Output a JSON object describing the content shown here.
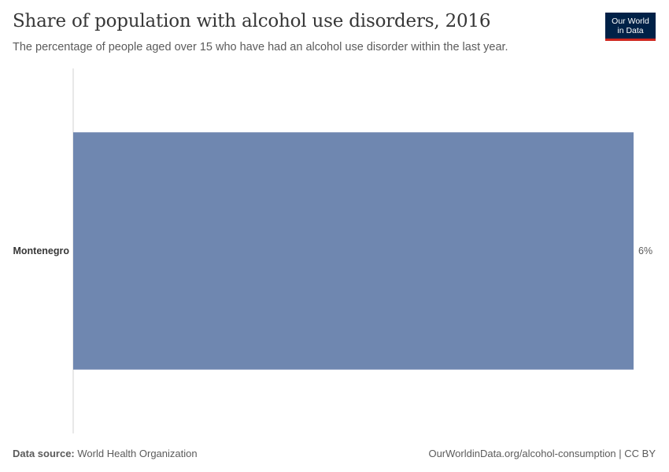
{
  "header": {
    "title": "Share of population with alcohol use disorders, 2016",
    "subtitle": "The percentage of people aged over 15 who have had an alcohol use disorder within the last year."
  },
  "logo": {
    "line1": "Our World",
    "line2": "in Data"
  },
  "footer": {
    "source_label": "Data source:",
    "source_value": "World Health Organization",
    "right_text": "OurWorldinData.org/alcohol-consumption | CC BY"
  },
  "colors": {
    "bar": "#6f87b0",
    "axis": "#d0d0d0",
    "text": "#373737",
    "label": "#5b5b5b"
  },
  "chart_data": {
    "type": "bar",
    "orientation": "horizontal",
    "title": "Share of population with alcohol use disorders, 2016",
    "categories": [
      "Montenegro"
    ],
    "values": [
      6
    ],
    "value_labels": [
      "6%"
    ],
    "unit": "%",
    "xlim": [
      0,
      6
    ],
    "grid": false,
    "legend": "none"
  }
}
